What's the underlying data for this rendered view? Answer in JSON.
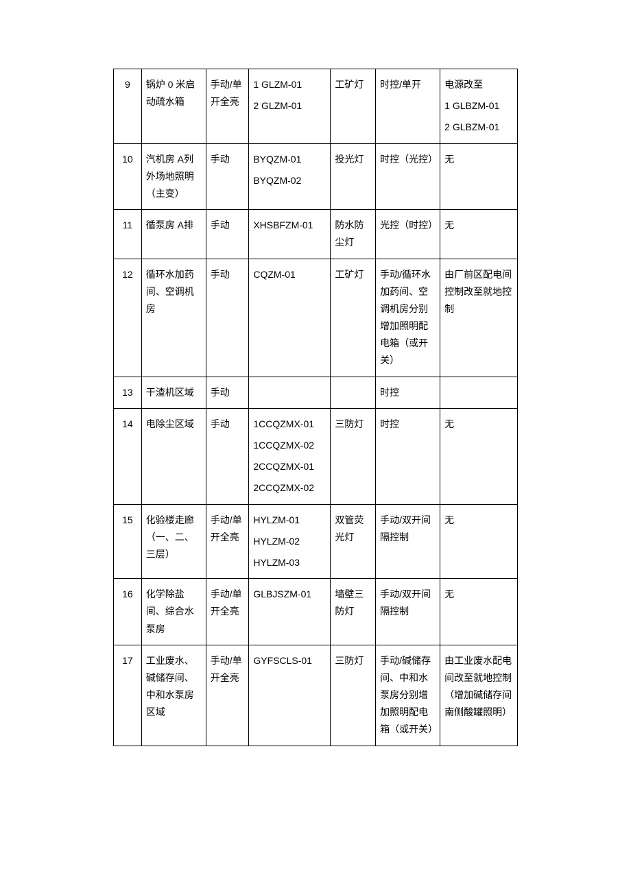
{
  "table": {
    "rows": [
      {
        "num": "9",
        "area": "锅炉 0 米启动疏水箱",
        "mode": "手动/单开全亮",
        "box": [
          "1 GLZM-01",
          "2 GLZM-01"
        ],
        "light": "工矿灯",
        "control": "时控/单开",
        "remark": [
          "电源改至",
          "1 GLBZM-01",
          "2 GLBZM-01"
        ]
      },
      {
        "num": "10",
        "area": "汽机房 A列外场地照明（主变）",
        "mode": "手动",
        "box": [
          "BYQZM-01",
          "BYQZM-02"
        ],
        "light": "投光灯",
        "control": "时控（光控）",
        "remark": [
          "无"
        ]
      },
      {
        "num": "11",
        "area": "循泵房 A排",
        "mode": "手动",
        "box": [
          "XHSBFZM-01"
        ],
        "light": "防水防尘灯",
        "control": "光控（时控）",
        "remark": [
          "无"
        ]
      },
      {
        "num": "12",
        "area": "循环水加药间、空调机房",
        "mode": "手动",
        "box": [
          "CQZM-01"
        ],
        "light": "工矿灯",
        "control": "手动/循环水加药间、空调机房分别增加照明配电箱（或开关）",
        "remark": [
          "由厂前区配电间控制改至就地控制"
        ]
      },
      {
        "num": "13",
        "area": "干渣机区域",
        "mode": "手动",
        "box": [],
        "light": "",
        "control": "时控",
        "remark": []
      },
      {
        "num": "14",
        "area": "电除尘区域",
        "mode": "手动",
        "box": [
          "1CCQZMX-01",
          "1CCQZMX-02",
          "2CCQZMX-01",
          "2CCQZMX-02"
        ],
        "light": "三防灯",
        "control": "时控",
        "remark": [
          "无"
        ]
      },
      {
        "num": "15",
        "area": "化验楼走廊（一、二、三层）",
        "mode": "手动/单开全亮",
        "box": [
          "HYLZM-01",
          "HYLZM-02",
          "HYLZM-03"
        ],
        "light": "双管荧光灯",
        "control": "手动/双开间隔控制",
        "remark": [
          "无"
        ]
      },
      {
        "num": "16",
        "area": "化学除盐间、综合水泵房",
        "mode": "手动/单开全亮",
        "box": [
          "GLBJSZM-01"
        ],
        "light": "墙壁三防灯",
        "control": "手动/双开间隔控制",
        "remark": [
          "无"
        ]
      },
      {
        "num": "17",
        "area": "工业废水、碱储存间、中和水泵房区域",
        "mode": "手动/单开全亮",
        "box": [
          "GYFSCLS-01"
        ],
        "light": "三防灯",
        "control": "手动/碱储存间、中和水泵房分别增加照明配电箱（或开关）",
        "remark": [
          "由工业废水配电间改至就地控制（增加碱储存间南侧酸罐照明）"
        ]
      }
    ],
    "border_color": "#000000",
    "background_color": "#ffffff",
    "text_color": "#000000",
    "font_size": 14
  }
}
